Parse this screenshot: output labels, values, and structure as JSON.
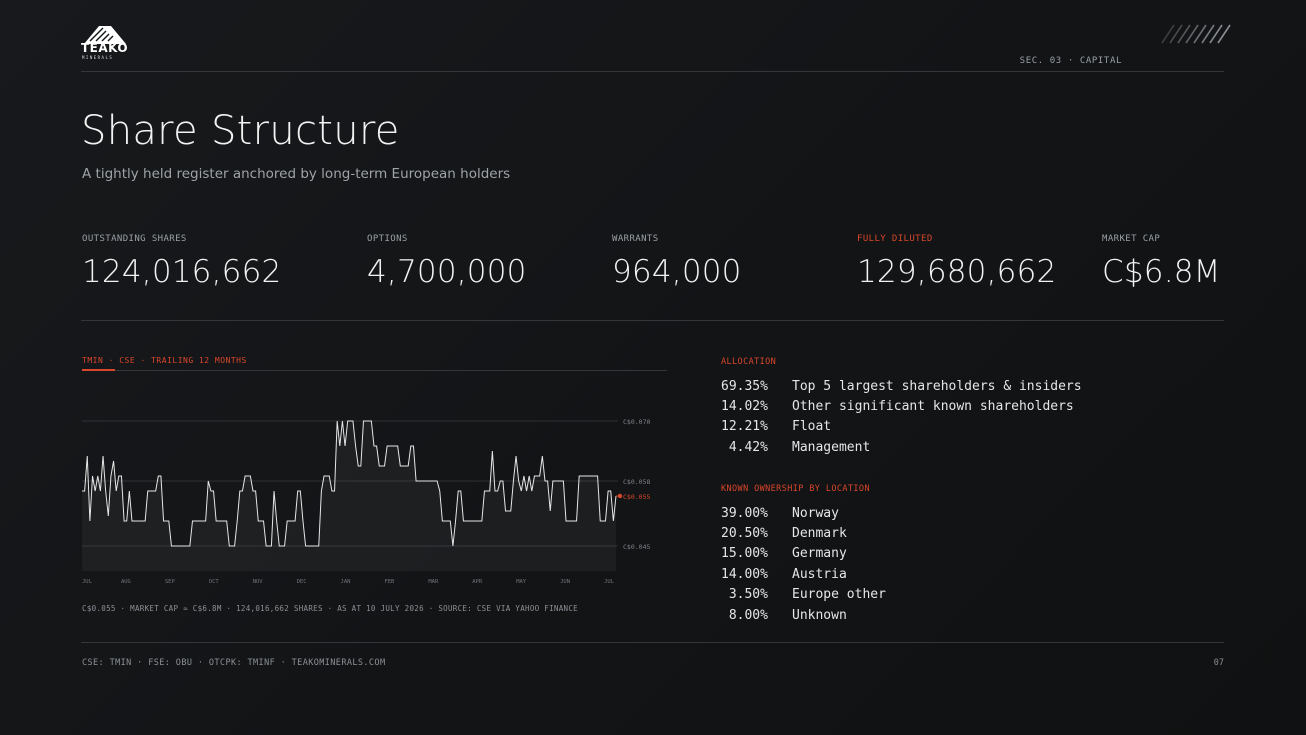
{
  "brand": {
    "logo_word": "TEAKO",
    "logo_sub": "MINERALS",
    "logo_icon": "mountain-logo-icon"
  },
  "section": "SEC. 03 · CAPITAL",
  "title": "Share Structure",
  "subtitle": "A tightly held register anchored by long-term European holders",
  "stats": [
    {
      "label": "OUTSTANDING SHARES",
      "value": "124,016,662"
    },
    {
      "label": "OPTIONS",
      "value": "4,700,000"
    },
    {
      "label": "WARRANTS",
      "value": "964,000"
    },
    {
      "label": "FULLY DILUTED",
      "value": "129,680,662"
    },
    {
      "label": "MARKET CAP",
      "value": "C$6.8M"
    }
  ],
  "colors": {
    "accent": "#d9462b",
    "background": "#131517",
    "rule": "#33363a",
    "muted": "#9aa0a6"
  },
  "chart_header": "TMIN · CSE · TRAILING 12 MONTHS",
  "chart_data": {
    "type": "line",
    "ylim": [
      0.04,
      0.075
    ],
    "y_ticks": [
      {
        "value": 0.07,
        "label": "C$0.070"
      },
      {
        "value": 0.058,
        "label": "C$0.058"
      },
      {
        "value": 0.045,
        "label": "C$0.045"
      }
    ],
    "last_value": 0.055,
    "last_label": "C$0.055",
    "x_ticks": [
      "JUL",
      "AUG",
      "SEP",
      "OCT",
      "NOV",
      "DEC",
      "JAN",
      "FEB",
      "MAR",
      "APR",
      "MAY",
      "JUN",
      "JUL"
    ],
    "values": [
      0.056,
      0.056,
      0.063,
      0.05,
      0.059,
      0.056,
      0.059,
      0.056,
      0.063,
      0.056,
      0.051,
      0.059,
      0.062,
      0.056,
      0.059,
      0.059,
      0.05,
      0.05,
      0.056,
      0.05,
      0.05,
      0.05,
      0.05,
      0.05,
      0.05,
      0.056,
      0.056,
      0.056,
      0.056,
      0.059,
      0.059,
      0.05,
      0.05,
      0.05,
      0.045,
      0.045,
      0.045,
      0.045,
      0.045,
      0.045,
      0.045,
      0.045,
      0.05,
      0.05,
      0.05,
      0.05,
      0.05,
      0.05,
      0.058,
      0.056,
      0.056,
      0.05,
      0.05,
      0.05,
      0.05,
      0.05,
      0.045,
      0.045,
      0.045,
      0.05,
      0.056,
      0.056,
      0.059,
      0.059,
      0.059,
      0.056,
      0.056,
      0.05,
      0.05,
      0.05,
      0.045,
      0.045,
      0.045,
      0.056,
      0.05,
      0.045,
      0.045,
      0.045,
      0.05,
      0.05,
      0.05,
      0.05,
      0.056,
      0.056,
      0.05,
      0.045,
      0.045,
      0.045,
      0.045,
      0.045,
      0.045,
      0.056,
      0.059,
      0.059,
      0.059,
      0.056,
      0.056,
      0.07,
      0.065,
      0.07,
      0.065,
      0.07,
      0.07,
      0.07,
      0.065,
      0.061,
      0.061,
      0.07,
      0.07,
      0.07,
      0.07,
      0.065,
      0.065,
      0.061,
      0.061,
      0.061,
      0.065,
      0.065,
      0.065,
      0.065,
      0.065,
      0.061,
      0.061,
      0.061,
      0.061,
      0.065,
      0.065,
      0.058,
      0.058,
      0.058,
      0.058,
      0.058,
      0.058,
      0.058,
      0.058,
      0.058,
      0.056,
      0.05,
      0.05,
      0.05,
      0.05,
      0.045,
      0.05,
      0.056,
      0.056,
      0.05,
      0.05,
      0.05,
      0.05,
      0.05,
      0.05,
      0.05,
      0.05,
      0.056,
      0.056,
      0.056,
      0.064,
      0.056,
      0.056,
      0.058,
      0.058,
      0.052,
      0.052,
      0.052,
      0.058,
      0.063,
      0.058,
      0.056,
      0.059,
      0.056,
      0.059,
      0.056,
      0.059,
      0.059,
      0.059,
      0.063,
      0.058,
      0.058,
      0.052,
      0.058,
      0.058,
      0.058,
      0.058,
      0.058,
      0.05,
      0.05,
      0.05,
      0.05,
      0.05,
      0.059,
      0.059,
      0.059,
      0.059,
      0.059,
      0.059,
      0.059,
      0.059,
      0.05,
      0.05,
      0.05,
      0.056,
      0.056,
      0.05,
      0.055
    ]
  },
  "chart_footer": "C$0.055 · MARKET CAP ≈ C$6.8M · 124,016,662 SHARES · AS AT 10 JULY 2026 · SOURCE: CSE VIA YAHOO FINANCE",
  "allocation": {
    "heading": "ALLOCATION",
    "rows": [
      {
        "pct": "69.35%",
        "label": "Top 5 largest shareholders & insiders"
      },
      {
        "pct": "14.02%",
        "label": "Other significant known shareholders"
      },
      {
        "pct": "12.21%",
        "label": "Float"
      },
      {
        "pct": " 4.42%",
        "label": "Management"
      }
    ]
  },
  "location": {
    "heading": "KNOWN OWNERSHIP BY LOCATION",
    "rows": [
      {
        "pct": "39.00%",
        "label": "Norway"
      },
      {
        "pct": "20.50%",
        "label": "Denmark"
      },
      {
        "pct": "15.00%",
        "label": "Germany"
      },
      {
        "pct": "14.00%",
        "label": "Austria"
      },
      {
        "pct": " 3.50%",
        "label": "Europe other"
      },
      {
        "pct": " 8.00%",
        "label": "Unknown"
      }
    ]
  },
  "footer": {
    "tickers": "CSE: TMIN · FSE: OBU · OTCPK: TMINF · TEAKOMINERALS.COM",
    "page": "07"
  }
}
